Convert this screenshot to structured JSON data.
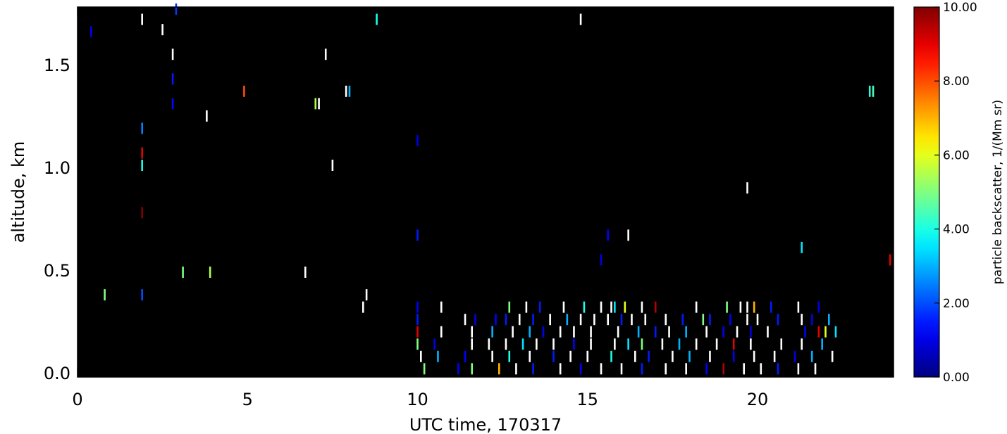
{
  "chart_data": {
    "type": "heatmap",
    "title": "",
    "date": "170317",
    "xlabel": "UTC time, 170317",
    "ylabel": "altitude, km",
    "xlim": [
      0,
      24
    ],
    "ylim": [
      -0.02,
      1.78
    ],
    "xticks": [
      0,
      5,
      10,
      15,
      20
    ],
    "xtick_labels": [
      "0",
      "5",
      "10",
      "15",
      "20"
    ],
    "yticks": [
      0.0,
      0.5,
      1.0,
      1.5
    ],
    "ytick_labels": [
      "0.0",
      "0.5",
      "1.0",
      "1.5"
    ],
    "background_color": "#000000",
    "colorbar": {
      "label": "particle backscatter, 1/(Mm sr)",
      "range": [
        0,
        10
      ],
      "ticks": [
        0,
        2,
        4,
        6,
        8,
        10
      ],
      "tick_labels": [
        "0.00",
        "2.00",
        "4.00",
        "6.00",
        "8.00",
        "10.00"
      ],
      "colormap": "jet"
    },
    "cells_note": "Sparse detections: each cell is [utc_hours, altitude_km, backscatter]; values >10 drawn white (saturated).",
    "cells": [
      [
        0.4,
        1.66,
        1.0
      ],
      [
        2.9,
        1.77,
        1.8
      ],
      [
        1.9,
        1.72,
        11
      ],
      [
        2.5,
        1.67,
        11
      ],
      [
        8.8,
        1.72,
        4.0
      ],
      [
        14.8,
        1.72,
        11
      ],
      [
        2.8,
        1.55,
        11
      ],
      [
        7.3,
        1.55,
        11
      ],
      [
        2.8,
        1.43,
        1.5
      ],
      [
        4.9,
        1.37,
        8.0
      ],
      [
        7.9,
        1.37,
        11
      ],
      [
        8.0,
        1.37,
        3.0
      ],
      [
        23.3,
        1.37,
        4.0
      ],
      [
        23.4,
        1.37,
        4.5
      ],
      [
        2.8,
        1.31,
        1.3
      ],
      [
        7.0,
        1.31,
        5.5
      ],
      [
        7.1,
        1.31,
        11
      ],
      [
        3.8,
        1.25,
        11
      ],
      [
        1.9,
        1.19,
        2.5
      ],
      [
        10.0,
        1.13,
        1.0
      ],
      [
        1.9,
        1.07,
        9.0
      ],
      [
        1.9,
        1.01,
        4.0
      ],
      [
        7.5,
        1.01,
        11
      ],
      [
        19.7,
        0.9,
        11
      ],
      [
        1.9,
        0.78,
        10.0
      ],
      [
        10.0,
        0.67,
        1.5
      ],
      [
        15.6,
        0.67,
        1.2
      ],
      [
        16.2,
        0.67,
        11
      ],
      [
        21.3,
        0.61,
        3.5
      ],
      [
        15.4,
        0.55,
        1.0
      ],
      [
        23.9,
        0.55,
        9.0
      ],
      [
        0.8,
        0.38,
        5.0
      ],
      [
        1.9,
        0.38,
        2.0
      ],
      [
        3.1,
        0.49,
        5.0
      ],
      [
        3.9,
        0.49,
        5.5
      ],
      [
        6.7,
        0.49,
        11
      ],
      [
        8.5,
        0.38,
        11
      ],
      [
        8.4,
        0.32,
        11
      ],
      [
        10.0,
        0.32,
        1.2
      ],
      [
        10.7,
        0.32,
        11
      ],
      [
        12.7,
        0.32,
        5.0
      ],
      [
        13.2,
        0.32,
        11
      ],
      [
        13.6,
        0.32,
        1.5
      ],
      [
        14.3,
        0.32,
        11
      ],
      [
        14.9,
        0.32,
        4.0
      ],
      [
        15.4,
        0.32,
        11
      ],
      [
        15.7,
        0.32,
        11
      ],
      [
        15.8,
        0.32,
        3.5
      ],
      [
        16.1,
        0.32,
        6.0
      ],
      [
        16.6,
        0.32,
        11
      ],
      [
        17.0,
        0.32,
        9.5
      ],
      [
        18.2,
        0.32,
        11
      ],
      [
        19.1,
        0.32,
        5.0
      ],
      [
        19.5,
        0.32,
        11
      ],
      [
        19.7,
        0.32,
        11
      ],
      [
        19.9,
        0.32,
        7.0
      ],
      [
        20.4,
        0.32,
        1.5
      ],
      [
        21.2,
        0.32,
        11
      ],
      [
        21.8,
        0.32,
        1.0
      ],
      [
        10.0,
        0.26,
        1.5
      ],
      [
        11.4,
        0.26,
        11
      ],
      [
        11.7,
        0.26,
        1.0
      ],
      [
        12.3,
        0.26,
        1.2
      ],
      [
        12.6,
        0.26,
        1.5
      ],
      [
        13.0,
        0.26,
        11
      ],
      [
        13.4,
        0.26,
        1.5
      ],
      [
        13.9,
        0.26,
        11
      ],
      [
        14.4,
        0.26,
        3.0
      ],
      [
        14.8,
        0.26,
        11
      ],
      [
        15.2,
        0.26,
        11
      ],
      [
        15.6,
        0.26,
        11
      ],
      [
        16.0,
        0.26,
        1.5
      ],
      [
        16.3,
        0.26,
        11
      ],
      [
        16.7,
        0.26,
        11
      ],
      [
        17.3,
        0.26,
        11
      ],
      [
        17.8,
        0.26,
        1.5
      ],
      [
        18.4,
        0.26,
        5.0
      ],
      [
        18.6,
        0.26,
        1.5
      ],
      [
        19.2,
        0.26,
        1.2
      ],
      [
        19.7,
        0.26,
        11
      ],
      [
        20.0,
        0.26,
        11
      ],
      [
        20.6,
        0.26,
        1.5
      ],
      [
        21.3,
        0.26,
        11
      ],
      [
        21.6,
        0.26,
        1.0
      ],
      [
        22.1,
        0.26,
        3.0
      ],
      [
        10.0,
        0.2,
        9.0
      ],
      [
        10.7,
        0.2,
        11
      ],
      [
        11.6,
        0.2,
        11
      ],
      [
        12.2,
        0.2,
        3.0
      ],
      [
        12.8,
        0.2,
        11
      ],
      [
        13.3,
        0.2,
        3.0
      ],
      [
        13.7,
        0.2,
        1.2
      ],
      [
        14.2,
        0.2,
        11
      ],
      [
        14.6,
        0.2,
        11
      ],
      [
        15.1,
        0.2,
        11
      ],
      [
        15.9,
        0.2,
        11
      ],
      [
        16.5,
        0.2,
        3.0
      ],
      [
        17.0,
        0.2,
        1.5
      ],
      [
        17.4,
        0.2,
        11
      ],
      [
        17.9,
        0.2,
        3.0
      ],
      [
        18.5,
        0.2,
        11
      ],
      [
        19.0,
        0.2,
        1.2
      ],
      [
        19.4,
        0.2,
        11
      ],
      [
        19.8,
        0.2,
        1.0
      ],
      [
        20.3,
        0.2,
        11
      ],
      [
        21.4,
        0.2,
        1.2
      ],
      [
        21.8,
        0.2,
        9.0
      ],
      [
        22.0,
        0.2,
        6.0
      ],
      [
        22.3,
        0.2,
        3.5
      ],
      [
        10.0,
        0.14,
        5.0
      ],
      [
        10.5,
        0.14,
        1.0
      ],
      [
        11.6,
        0.14,
        11
      ],
      [
        12.1,
        0.14,
        11
      ],
      [
        12.6,
        0.14,
        11
      ],
      [
        13.1,
        0.14,
        3.5
      ],
      [
        13.5,
        0.14,
        11
      ],
      [
        14.0,
        0.14,
        11
      ],
      [
        14.6,
        0.14,
        1.2
      ],
      [
        15.1,
        0.14,
        11
      ],
      [
        15.8,
        0.14,
        11
      ],
      [
        16.2,
        0.14,
        3.5
      ],
      [
        16.6,
        0.14,
        5.0
      ],
      [
        17.2,
        0.14,
        11
      ],
      [
        17.7,
        0.14,
        3.0
      ],
      [
        18.2,
        0.14,
        11
      ],
      [
        18.8,
        0.14,
        11
      ],
      [
        19.3,
        0.14,
        9.0
      ],
      [
        19.8,
        0.14,
        11
      ],
      [
        20.7,
        0.14,
        11
      ],
      [
        21.3,
        0.14,
        11
      ],
      [
        21.9,
        0.14,
        3.0
      ],
      [
        10.1,
        0.08,
        11
      ],
      [
        10.6,
        0.08,
        3.0
      ],
      [
        11.4,
        0.08,
        1.2
      ],
      [
        12.2,
        0.08,
        11
      ],
      [
        12.7,
        0.08,
        4.0
      ],
      [
        13.3,
        0.08,
        11
      ],
      [
        14.0,
        0.08,
        1.5
      ],
      [
        14.5,
        0.08,
        11
      ],
      [
        15.0,
        0.08,
        11
      ],
      [
        15.7,
        0.08,
        4.0
      ],
      [
        16.4,
        0.08,
        11
      ],
      [
        16.8,
        0.08,
        1.5
      ],
      [
        17.5,
        0.08,
        11
      ],
      [
        18.0,
        0.08,
        3.0
      ],
      [
        18.6,
        0.08,
        11
      ],
      [
        19.3,
        0.08,
        1.2
      ],
      [
        19.9,
        0.08,
        11
      ],
      [
        20.5,
        0.08,
        11
      ],
      [
        21.1,
        0.08,
        1.0
      ],
      [
        21.6,
        0.08,
        3.0
      ],
      [
        22.2,
        0.08,
        11
      ],
      [
        10.2,
        0.02,
        5.0
      ],
      [
        11.2,
        0.02,
        1.2
      ],
      [
        11.6,
        0.02,
        5.0
      ],
      [
        12.4,
        0.02,
        7.0
      ],
      [
        12.9,
        0.02,
        11
      ],
      [
        13.4,
        0.02,
        1.5
      ],
      [
        14.2,
        0.02,
        11
      ],
      [
        14.8,
        0.02,
        1.2
      ],
      [
        15.4,
        0.02,
        11
      ],
      [
        16.0,
        0.02,
        11
      ],
      [
        16.6,
        0.02,
        1.5
      ],
      [
        17.3,
        0.02,
        11
      ],
      [
        17.9,
        0.02,
        11
      ],
      [
        18.5,
        0.02,
        1.2
      ],
      [
        19.0,
        0.02,
        9.5
      ],
      [
        19.6,
        0.02,
        11
      ],
      [
        20.1,
        0.02,
        11
      ],
      [
        20.6,
        0.02,
        1.5
      ],
      [
        21.2,
        0.02,
        11
      ],
      [
        21.7,
        0.02,
        11
      ]
    ]
  }
}
